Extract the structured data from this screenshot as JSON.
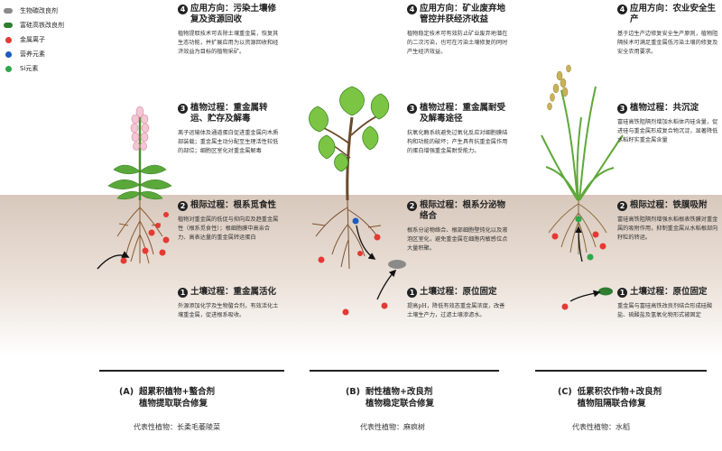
{
  "legend": {
    "items": [
      {
        "label": "生物碳改良剂"
      },
      {
        "label": "富硅高铁改良剂"
      },
      {
        "label": "金属离子"
      },
      {
        "label": "营养元素"
      },
      {
        "label": "Si元素"
      }
    ]
  },
  "colors": {
    "biochar": "#8a8a8a",
    "si_fe_amendment": "#2e7d32",
    "metal_ion": "#e53935",
    "nutrient": "#1e5bbf",
    "si": "#2ea84a",
    "soil": "#d8c8bc"
  },
  "panels": [
    {
      "steps": [
        {
          "num": "4",
          "title": "应用方向：污染土壤修复及资源回收",
          "body": "植物提取技术可去除土壤重金属，恢复其生态功能，并扩展应用为以资源回收和经济效益为目标的植物采矿。"
        },
        {
          "num": "3",
          "title": "植物过程：重金属转运、贮存及解毒",
          "body": "离子运输体及通道蛋白促进重金属向木质部装载；重金属主动分配至生理活性较低的部位；细胞区室化对重金属解毒"
        },
        {
          "num": "2",
          "title": "根际过程：根系觅食性",
          "body": "植物对重金属的低促与抑向应及趋重金属性（根系觅食性）；根细胞膜中高亲合力、高表达量的重金属转运蛋白"
        },
        {
          "num": "1",
          "title": "土壤过程：重金属活化",
          "body": "外源添加化学及生物螯合剂，有效活化土壤重金属，促进根系吸收。"
        }
      ],
      "caption": {
        "label": "(A)",
        "line1": "超累积植物+螯合剂",
        "line2": "植物提取联合修复",
        "rep": "代表性植物：长柔毛萎陵菜"
      }
    },
    {
      "steps": [
        {
          "num": "4",
          "title": "应用方向：矿业废弃地管控并获经济收益",
          "body": "植物稳定技术可有效防止矿业废弃地潜在的二次污染，也可在污染土壤修复的同时产生经济效益。"
        },
        {
          "num": "3",
          "title": "植物过程：重金属耐受及解毒途径",
          "body": "抗氧化酶系统避免过氧化反应对细胞膜结构和功能的破坏；产生具有抗重金属作用的蛋白增强重金属耐受能力。"
        },
        {
          "num": "2",
          "title": "根际过程：根系分泌物络合",
          "body": "根系分泌物络合、根部细胞壁钝化以及液泡区室化，避免重金属在细胞内敏感位点大量积聚。"
        },
        {
          "num": "1",
          "title": "土壤过程：原位固定",
          "body": "提高pH，降低有效态重金属浓度，改善土壤生产力，过滤土壤渗滤水。"
        }
      ],
      "caption": {
        "label": "(B)",
        "line1": "耐性植物+改良剂",
        "line2": "植物稳定联合修复",
        "rep": "代表性植物：麻疯树"
      }
    },
    {
      "steps": [
        {
          "num": "4",
          "title": "应用方向：农业安全生产",
          "body": "基于边生产边修复安全生产原则，植物阻隔技术可满足重金属低污染土壤的修复及安全农用要求。"
        },
        {
          "num": "3",
          "title": "植物过程：共沉淀",
          "body": "富硅高铁阻隔剂增加水稻体内硅含量，促进硅与重金属形成复合物沉淀，显著降低水稻籽实重金属含量"
        },
        {
          "num": "2",
          "title": "根际过程：铁膜吸附",
          "body": "富硅高铁阻隔剂增强水稻根表铁膜对重金属的吸附作用，抑制重金属从水稻根部向籽粒的转运。"
        },
        {
          "num": "1",
          "title": "土壤过程：原位固定",
          "body": "重金属与富硅高铁改良剂结合形成硅酸盐、硫酸盐及氢氧化物形式被固定"
        }
      ],
      "caption": {
        "label": "(C)",
        "line1": "低累积农作物+改良剂",
        "line2": "植物阻隔联合修复",
        "rep": "代表性植物：水稻"
      }
    }
  ]
}
